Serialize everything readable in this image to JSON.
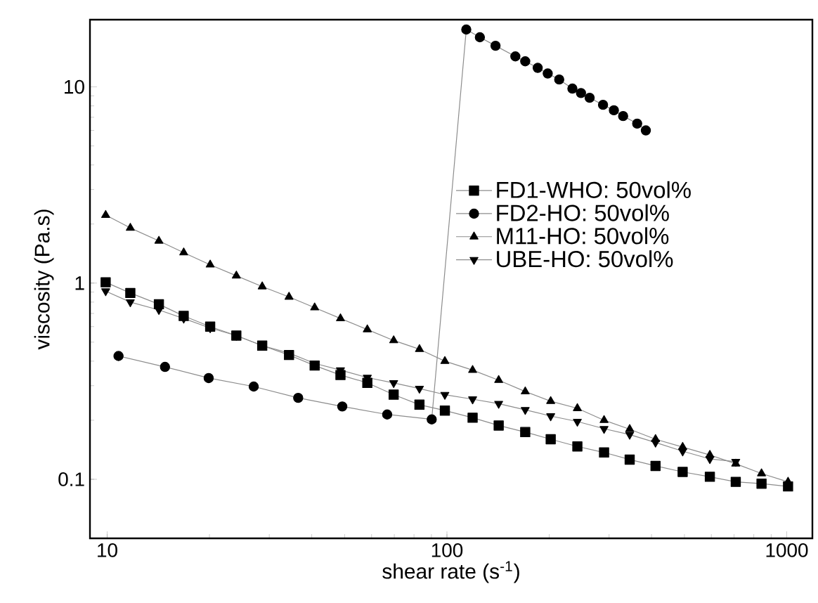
{
  "chart_data": {
    "type": "line",
    "xlabel": "shear rate (s$^{-1}$)",
    "ylabel": "viscosity (Pa.s)",
    "log": "xy",
    "xlim": [
      8.9,
      1190
    ],
    "ylim": [
      0.05,
      22
    ],
    "xticks": [
      10,
      100,
      1000
    ],
    "yticks": [
      0.1,
      1,
      10
    ],
    "legend": "right",
    "grid": false,
    "series": [
      {
        "name": "FD1-WHO:  50vol%",
        "color": "#000000",
        "marker": "square",
        "x": [
          9.9,
          11.7,
          14.2,
          16.8,
          20.1,
          24.0,
          28.6,
          34.3,
          40.8,
          48.6,
          58.3,
          69.7,
          83.0,
          98.6,
          119,
          142,
          170,
          202,
          242,
          290,
          345,
          411,
          494,
          594,
          708,
          843,
          1009
        ],
        "values": [
          1.01,
          0.89,
          0.78,
          0.68,
          0.6,
          0.54,
          0.48,
          0.43,
          0.38,
          0.34,
          0.31,
          0.27,
          0.24,
          0.224,
          0.206,
          0.188,
          0.174,
          0.16,
          0.147,
          0.137,
          0.126,
          0.117,
          0.109,
          0.103,
          0.097,
          0.095,
          0.092
        ]
      },
      {
        "name": "FD2-HO:  50vol%",
        "color": "#000000",
        "marker": "circle",
        "x": [
          10.8,
          14.8,
          19.9,
          27.0,
          36.5,
          49.2,
          66.7,
          90.2,
          114,
          125,
          139,
          159,
          170,
          185,
          198,
          214,
          234,
          248,
          263,
          288,
          310,
          330,
          363,
          385
        ],
        "values": [
          0.425,
          0.374,
          0.328,
          0.297,
          0.26,
          0.235,
          0.214,
          0.202,
          19.6,
          17.9,
          16.2,
          14.3,
          13.5,
          12.5,
          11.7,
          10.9,
          9.8,
          9.3,
          8.8,
          8.1,
          7.6,
          7.1,
          6.5,
          6.0
        ]
      },
      {
        "name": "M11-HO:  50vol%",
        "color": "#000000",
        "marker": "triangle",
        "x": [
          9.9,
          11.7,
          14.2,
          16.8,
          20.1,
          24.0,
          28.6,
          34.3,
          40.8,
          48.6,
          58.3,
          69.7,
          83.0,
          98.6,
          119,
          142,
          170,
          202,
          242,
          290,
          345,
          411,
          494,
          594,
          708,
          843,
          1009
        ],
        "values": [
          2.22,
          1.91,
          1.64,
          1.43,
          1.24,
          1.09,
          0.96,
          0.85,
          0.75,
          0.66,
          0.58,
          0.51,
          0.46,
          0.4,
          0.36,
          0.32,
          0.28,
          0.25,
          0.23,
          0.2,
          0.18,
          0.16,
          0.146,
          0.133,
          0.12,
          0.107,
          0.097
        ]
      },
      {
        "name": "UBE-HO:  50vol%",
        "color": "#000000",
        "marker": "triangle_down",
        "x": [
          9.9,
          11.7,
          14.2,
          16.8,
          20.1,
          24.0,
          28.6,
          34.3,
          40.8,
          48.6,
          58.3,
          69.7,
          83.0,
          98.6,
          119,
          142,
          170,
          202,
          242,
          290,
          345,
          411,
          494,
          594,
          708
        ],
        "values": [
          0.91,
          0.8,
          0.73,
          0.66,
          0.59,
          0.54,
          0.48,
          0.44,
          0.39,
          0.36,
          0.33,
          0.31,
          0.29,
          0.27,
          0.256,
          0.243,
          0.226,
          0.21,
          0.197,
          0.181,
          0.169,
          0.154,
          0.139,
          0.127,
          0.123
        ]
      }
    ]
  }
}
